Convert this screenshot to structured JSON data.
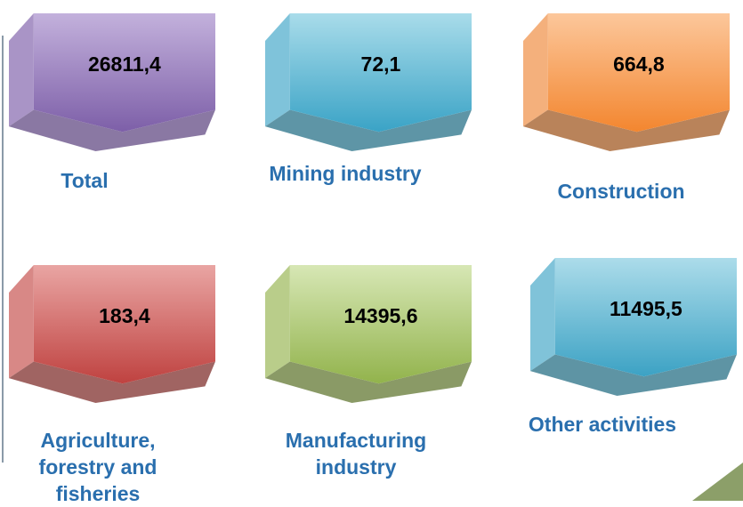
{
  "items": [
    {
      "value": "26811,4",
      "label": "Total"
    },
    {
      "value": "72,1",
      "label": "Mining industry"
    },
    {
      "value": "664,8",
      "label": "Construction"
    },
    {
      "value": "183,4",
      "label": "Agriculture, forestry and fisheries"
    },
    {
      "value": "14395,6",
      "label": "Manufacturing industry"
    },
    {
      "value": "11495,5",
      "label": "Other activities"
    }
  ]
}
